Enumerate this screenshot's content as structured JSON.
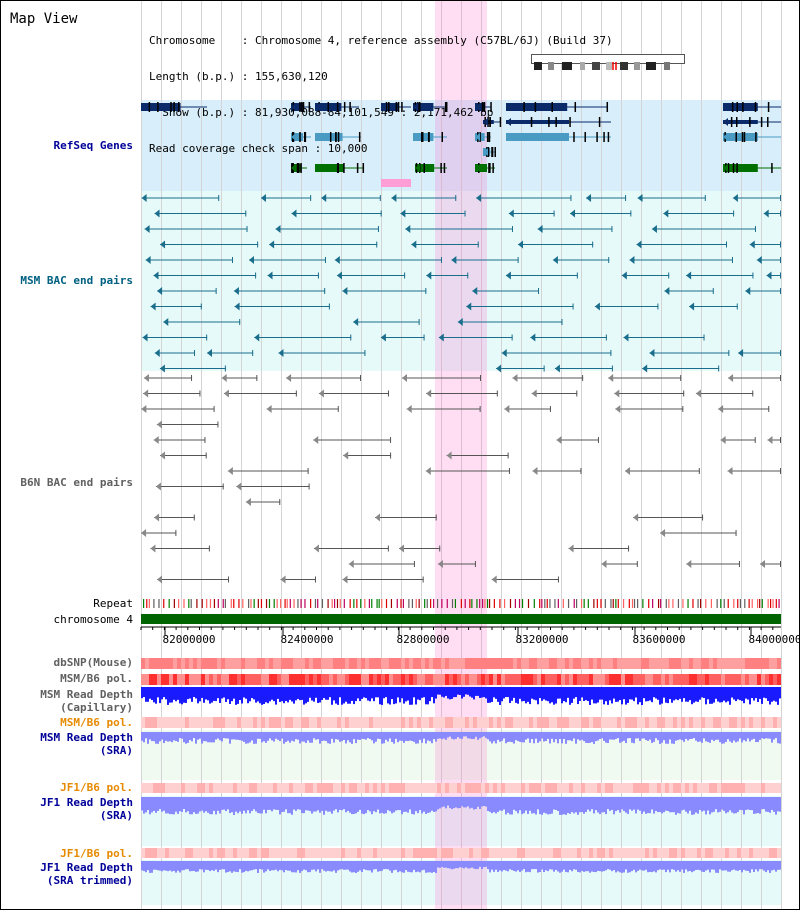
{
  "header": {
    "title": "Map View",
    "lines": [
      "Chromosome    : Chromosome 4, reference assembly (C57BL/6J) (Build 37)",
      "Length (b.p.) : 155,630,120",
      "  Show (b.p.) : 81,930,088-84,101,549 : 2,171,462 bp",
      "Read coverage check span : 10,000"
    ]
  },
  "tracks": {
    "refseq": "RefSeq Genes",
    "msm_bac": "MSM BAC end pairs",
    "b6n_bac": "B6N BAC end pairs",
    "repeat": "Repeat",
    "chromosome": "chromosome 4",
    "dbsnp": "dbSNP(Mouse)",
    "msm_b6_pol_1": "MSM/B6 pol.",
    "msm_depth_cap_1": "MSM Read Depth",
    "msm_depth_cap_2": "(Capillary)",
    "msm_b6_pol_2": "MSM/B6 pol.",
    "msm_depth_sra_1": "MSM Read Depth",
    "msm_depth_sra_2": "(SRA)",
    "jf1_b6_pol_1": "JF1/B6 pol.",
    "jf1_depth_sra_1": "JF1 Read Depth",
    "jf1_depth_sra_2": "(SRA)",
    "jf1_b6_pol_2": "JF1/B6 pol.",
    "jf1_depth_trim_1": "JF1 Read Depth",
    "jf1_depth_trim_2": "(SRA trimmed)"
  },
  "axis": {
    "ticks": [
      "82000000",
      "82400000",
      "82800000",
      "83200000",
      "83600000",
      "84000000"
    ]
  },
  "colors": {
    "refseq_bg": "#d8eefa",
    "bac_bg": "#e6fafa",
    "refseq_dark": "#0a2a6a",
    "refseq_mid": "#4a9bc4",
    "refseq_green": "#007000",
    "bac_teal": "#1a6e8c",
    "b6n_gray": "#555555",
    "highlight": "#ffb0e0",
    "chromosome_bar": "#006400",
    "depth_blue": "#1a1aff",
    "depth_light": "#8a8aff",
    "pol_red": "#ff4040",
    "label_blue": "#000099",
    "label_orange": "#e68a00",
    "label_teal": "#006080",
    "label_gray": "#606060"
  }
}
